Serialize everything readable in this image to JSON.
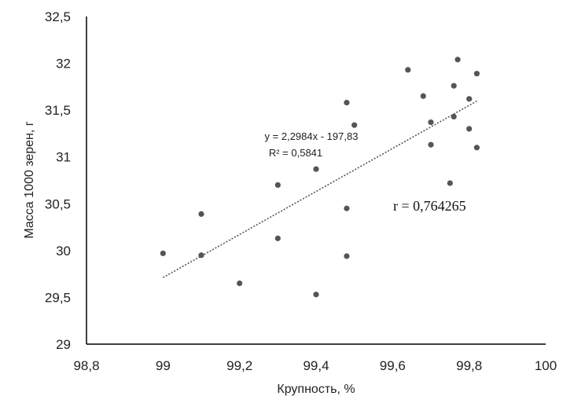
{
  "chart_data": {
    "type": "scatter",
    "title": "",
    "xlabel": "Крупность, %",
    "ylabel": "Масса 1000 зерен, г",
    "xlim": [
      98.8,
      100
    ],
    "ylim": [
      29,
      32.5
    ],
    "x_ticks": [
      "98,8",
      "99",
      "99,2",
      "99,4",
      "99,6",
      "99,8",
      "100"
    ],
    "y_ticks": [
      "29",
      "29,5",
      "30",
      "30,5",
      "31",
      "31,5",
      "32",
      "32,5"
    ],
    "points": [
      {
        "x": 99.0,
        "y": 29.97
      },
      {
        "x": 99.1,
        "y": 30.39
      },
      {
        "x": 99.1,
        "y": 29.95
      },
      {
        "x": 99.2,
        "y": 29.65
      },
      {
        "x": 99.3,
        "y": 30.7
      },
      {
        "x": 99.3,
        "y": 30.13
      },
      {
        "x": 99.4,
        "y": 30.87
      },
      {
        "x": 99.4,
        "y": 29.53
      },
      {
        "x": 99.48,
        "y": 31.58
      },
      {
        "x": 99.48,
        "y": 30.45
      },
      {
        "x": 99.48,
        "y": 29.94
      },
      {
        "x": 99.5,
        "y": 31.34
      },
      {
        "x": 99.64,
        "y": 31.93
      },
      {
        "x": 99.68,
        "y": 31.65
      },
      {
        "x": 99.7,
        "y": 31.37
      },
      {
        "x": 99.7,
        "y": 31.13
      },
      {
        "x": 99.75,
        "y": 30.72
      },
      {
        "x": 99.76,
        "y": 31.76
      },
      {
        "x": 99.76,
        "y": 31.43
      },
      {
        "x": 99.77,
        "y": 32.04
      },
      {
        "x": 99.8,
        "y": 31.62
      },
      {
        "x": 99.8,
        "y": 31.3
      },
      {
        "x": 99.82,
        "y": 31.89
      },
      {
        "x": 99.82,
        "y": 31.1
      }
    ],
    "trendline": {
      "slope": 2.2984,
      "intercept": -197.83,
      "x_range": [
        99.0,
        99.82
      ]
    },
    "annotations": {
      "equation": "y = 2,2984x - 197,83",
      "r_squared": "R² = 0,5841",
      "r": "r = 0,764265"
    },
    "grid": false,
    "colors": {
      "point": "#555555",
      "axis": "#000000",
      "trend": "#555555"
    }
  }
}
